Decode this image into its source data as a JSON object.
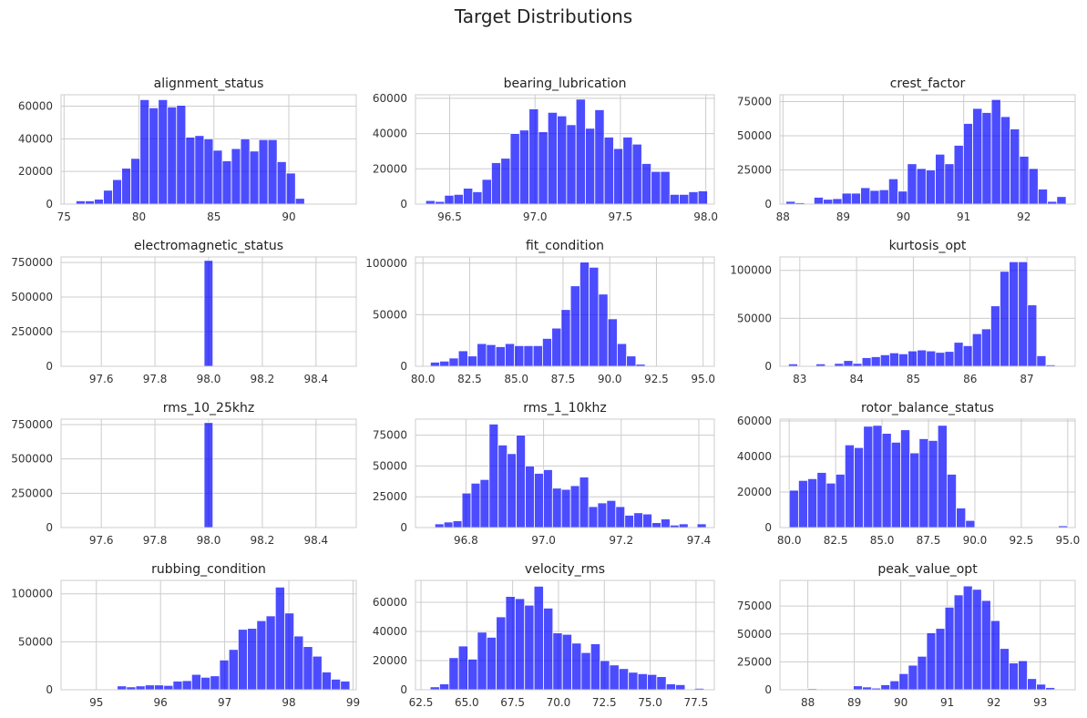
{
  "figure": {
    "title": "Target Distributions",
    "bar_color": "#0000ff",
    "bar_opacity": 0.7,
    "grid": true
  },
  "chart_data": [
    {
      "type": "bar",
      "title": "alignment_status",
      "xlim": [
        74.8,
        94.5
      ],
      "ylim": [
        0,
        67000
      ],
      "xticks": [
        75,
        80,
        85,
        90
      ],
      "xtick_labels": [
        "75",
        "80",
        "85",
        "90"
      ],
      "yticks": [
        0,
        20000,
        40000,
        60000
      ],
      "ytick_labels": [
        "0",
        "20000",
        "40000",
        "60000"
      ],
      "bin_start": 75.8,
      "bin_width": 0.61,
      "values": [
        2000,
        2000,
        3000,
        8500,
        15000,
        22000,
        28000,
        64000,
        59000,
        64000,
        59500,
        60500,
        41000,
        42000,
        40000,
        33000,
        26500,
        34000,
        40000,
        32500,
        39500,
        39500,
        26000,
        19000,
        3500,
        0,
        0,
        0,
        0,
        500
      ]
    },
    {
      "type": "bar",
      "title": "bearing_lubrication",
      "xlim": [
        96.3,
        98.05
      ],
      "ylim": [
        0,
        62000
      ],
      "xticks": [
        96.5,
        97.0,
        97.5,
        98.0
      ],
      "xtick_labels": [
        "96.5",
        "97.0",
        "97.5",
        "98.0"
      ],
      "yticks": [
        0,
        20000,
        40000,
        60000
      ],
      "ytick_labels": [
        "0",
        "20000",
        "40000",
        "60000"
      ],
      "bin_start": 96.36,
      "bin_width": 0.055,
      "values": [
        2000,
        1500,
        5000,
        5500,
        9000,
        7000,
        14000,
        23500,
        26000,
        40000,
        42000,
        54000,
        41000,
        52000,
        50000,
        45000,
        59500,
        43000,
        53500,
        38000,
        31500,
        38000,
        34000,
        23000,
        18500,
        18500,
        5500,
        5500,
        7000,
        7500
      ]
    },
    {
      "type": "bar",
      "title": "crest_factor",
      "xlim": [
        87.95,
        92.85
      ],
      "ylim": [
        0,
        80000
      ],
      "xticks": [
        88,
        89,
        90,
        91,
        92
      ],
      "xtick_labels": [
        "88",
        "89",
        "90",
        "91",
        "92"
      ],
      "yticks": [
        0,
        25000,
        50000,
        75000
      ],
      "ytick_labels": [
        "0",
        "25000",
        "50000",
        "75000"
      ],
      "bin_start": 88.05,
      "bin_width": 0.155,
      "values": [
        2000,
        1000,
        0,
        5000,
        3500,
        4000,
        8000,
        8000,
        12000,
        10000,
        10500,
        18500,
        9500,
        29500,
        26000,
        25000,
        36500,
        29500,
        43000,
        59000,
        70000,
        67000,
        76500,
        64000,
        55000,
        35000,
        26000,
        11000,
        2000,
        5500
      ]
    },
    {
      "type": "bar",
      "title": "electromagnetic_status",
      "xlim": [
        97.45,
        98.55
      ],
      "ylim": [
        0,
        790000
      ],
      "xticks": [
        97.6,
        97.8,
        98.0,
        98.2,
        98.4
      ],
      "xtick_labels": [
        "97.6",
        "97.8",
        "98.0",
        "98.2",
        "98.4"
      ],
      "yticks": [
        0,
        250000,
        500000,
        750000
      ],
      "ytick_labels": [
        "0",
        "250000",
        "500000",
        "750000"
      ],
      "bin_start": 97.983,
      "bin_width": 0.033,
      "values": [
        765000
      ]
    },
    {
      "type": "bar",
      "title": "fit_condition",
      "xlim": [
        79.6,
        95.6
      ],
      "ylim": [
        0,
        106000
      ],
      "xticks": [
        80.0,
        82.5,
        85.0,
        87.5,
        90.0,
        92.5,
        95.0
      ],
      "xtick_labels": [
        "80.0",
        "82.5",
        "85.0",
        "87.5",
        "90.0",
        "92.5",
        "95.0"
      ],
      "bin_start": 80.4,
      "bin_width": 0.5,
      "yticks": [
        0,
        50000,
        100000
      ],
      "ytick_labels": [
        "0",
        "50000",
        "100000"
      ],
      "values": [
        4000,
        5000,
        8000,
        15000,
        10000,
        22000,
        21000,
        19000,
        22000,
        20000,
        20000,
        20000,
        27000,
        37000,
        55000,
        78000,
        101000,
        96000,
        70000,
        46000,
        22000,
        10000,
        2000,
        0,
        0,
        0,
        0,
        0,
        0,
        0
      ]
    },
    {
      "type": "bar",
      "title": "kurtosis_opt",
      "xlim": [
        82.65,
        87.85
      ],
      "ylim": [
        0,
        114000
      ],
      "xticks": [
        83,
        84,
        85,
        86,
        87
      ],
      "xtick_labels": [
        "83",
        "84",
        "85",
        "86",
        "87"
      ],
      "yticks": [
        0,
        50000,
        100000
      ],
      "ytick_labels": [
        "0",
        "50000",
        "100000"
      ],
      "bin_start": 82.8,
      "bin_width": 0.162,
      "values": [
        2500,
        0,
        0,
        2500,
        0,
        3000,
        6000,
        3000,
        9000,
        10000,
        12000,
        14000,
        13000,
        16000,
        17000,
        16000,
        14500,
        15500,
        25000,
        21500,
        34000,
        39000,
        63000,
        99000,
        109000,
        109000,
        64000,
        11000,
        1500,
        0
      ]
    },
    {
      "type": "bar",
      "title": "rms_10_25khz",
      "xlim": [
        97.45,
        98.55
      ],
      "ylim": [
        0,
        790000
      ],
      "xticks": [
        97.6,
        97.8,
        98.0,
        98.2,
        98.4
      ],
      "xtick_labels": [
        "97.6",
        "97.8",
        "98.0",
        "98.2",
        "98.4"
      ],
      "yticks": [
        0,
        250000,
        500000,
        750000
      ],
      "ytick_labels": [
        "0",
        "250000",
        "500000",
        "750000"
      ],
      "bin_start": 97.983,
      "bin_width": 0.033,
      "values": [
        765000
      ]
    },
    {
      "type": "bar",
      "title": "rms_1_10khz",
      "xlim": [
        96.67,
        97.44
      ],
      "ylim": [
        0,
        88000
      ],
      "xticks": [
        96.8,
        97.0,
        97.2,
        97.4
      ],
      "xtick_labels": [
        "96.8",
        "97.0",
        "97.2",
        "97.4"
      ],
      "yticks": [
        0,
        25000,
        50000,
        75000
      ],
      "ytick_labels": [
        "0",
        "25000",
        "50000",
        "75000"
      ],
      "bin_start": 96.72,
      "bin_width": 0.0233,
      "values": [
        3000,
        4500,
        5500,
        28000,
        36000,
        39000,
        84000,
        67000,
        60000,
        75000,
        50000,
        44000,
        47000,
        32000,
        31000,
        34000,
        41000,
        17000,
        20000,
        22000,
        17000,
        10000,
        12000,
        11000,
        4000,
        7000,
        2000,
        3000,
        0,
        3000
      ]
    },
    {
      "type": "bar",
      "title": "rotor_balance_status",
      "xlim": [
        79.5,
        95.4
      ],
      "ylim": [
        0,
        61000
      ],
      "xticks": [
        80.0,
        82.5,
        85.0,
        87.5,
        90.0,
        92.5,
        95.0
      ],
      "xtick_labels": [
        "80.0",
        "82.5",
        "85.0",
        "87.5",
        "90.0",
        "92.5",
        "95.0"
      ],
      "yticks": [
        0,
        20000,
        40000,
        60000
      ],
      "ytick_labels": [
        "0",
        "20000",
        "40000",
        "60000"
      ],
      "bin_start": 80.0,
      "bin_width": 0.5,
      "values": [
        21000,
        26500,
        27500,
        31000,
        25000,
        30000,
        46500,
        45000,
        57000,
        57500,
        53000,
        48000,
        55000,
        42000,
        50000,
        49000,
        57500,
        30000,
        11000,
        4000,
        0,
        0,
        0,
        0,
        0,
        0,
        0,
        0,
        0,
        1000
      ]
    },
    {
      "type": "bar",
      "title": "rubbing_condition",
      "xlim": [
        94.45,
        99.05
      ],
      "ylim": [
        0,
        114000
      ],
      "xticks": [
        95,
        96,
        97,
        98,
        99
      ],
      "xtick_labels": [
        "95",
        "96",
        "97",
        "98",
        "99"
      ],
      "yticks": [
        0,
        50000,
        100000
      ],
      "ytick_labels": [
        "0",
        "50000",
        "100000"
      ],
      "bin_start": 94.6,
      "bin_width": 0.145,
      "values": [
        0,
        500,
        0,
        0,
        0,
        4000,
        3000,
        4000,
        5000,
        5000,
        4500,
        9000,
        9500,
        16000,
        13000,
        14500,
        31000,
        42000,
        63000,
        64000,
        72000,
        77000,
        107000,
        80000,
        56000,
        45000,
        35000,
        18500,
        11000,
        9000
      ]
    },
    {
      "type": "bar",
      "title": "velocity_rms",
      "xlim": [
        62.2,
        78.5
      ],
      "ylim": [
        0,
        75000
      ],
      "xticks": [
        62.5,
        65.0,
        67.5,
        70.0,
        72.5,
        75.0,
        77.5
      ],
      "xtick_labels": [
        "62.5",
        "65.0",
        "67.5",
        "70.0",
        "72.5",
        "75.0",
        "77.5"
      ],
      "yticks": [
        0,
        20000,
        40000,
        60000
      ],
      "ytick_labels": [
        "0",
        "20000",
        "40000",
        "60000"
      ],
      "bin_start": 63.0,
      "bin_width": 0.515,
      "values": [
        2000,
        4000,
        22000,
        30000,
        21000,
        39500,
        36000,
        50000,
        64000,
        62500,
        58000,
        71000,
        56000,
        39000,
        38000,
        32000,
        25500,
        31500,
        20000,
        17000,
        14500,
        12000,
        11000,
        10500,
        9000,
        4000,
        3500,
        0,
        1000,
        0
      ]
    },
    {
      "type": "bar",
      "title": "peak_value_opt",
      "xlim": [
        87.4,
        93.75
      ],
      "ylim": [
        0,
        98000
      ],
      "xticks": [
        88,
        89,
        90,
        91,
        92,
        93
      ],
      "xtick_labels": [
        "88",
        "89",
        "90",
        "91",
        "92",
        "93"
      ],
      "yticks": [
        0,
        25000,
        50000,
        75000
      ],
      "ytick_labels": [
        "0",
        "25000",
        "50000",
        "75000"
      ],
      "bin_start": 87.6,
      "bin_width": 0.197,
      "values": [
        500,
        500,
        1000,
        500,
        0,
        0,
        0,
        3500,
        2500,
        1500,
        4500,
        8000,
        14500,
        22000,
        30000,
        51000,
        55000,
        74000,
        85000,
        93000,
        90000,
        80000,
        62000,
        37000,
        24000,
        26000,
        10000,
        5000,
        2000,
        500
      ]
    }
  ]
}
